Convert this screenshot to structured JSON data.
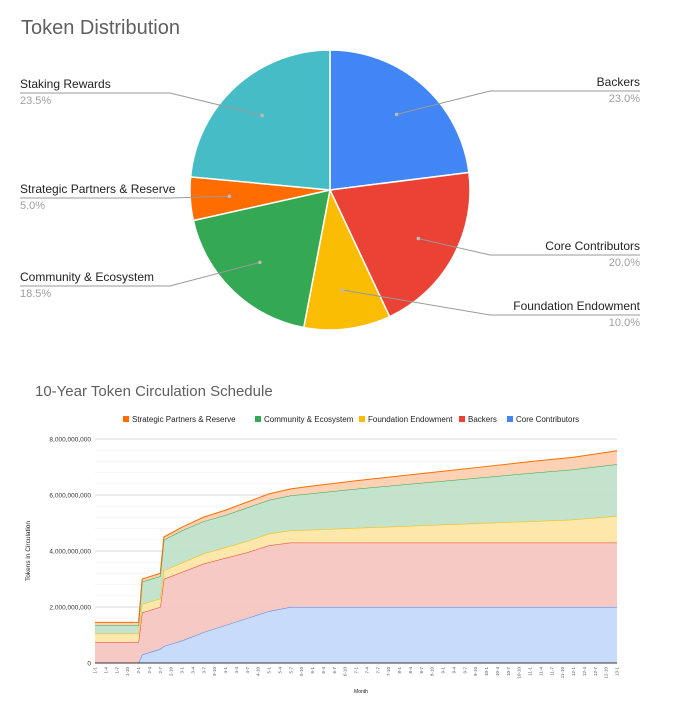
{
  "pie": {
    "title": "Token Distribution",
    "chart_data": {
      "type": "pie",
      "title": "Token Distribution",
      "slices": [
        {
          "label": "Backers",
          "value": 23.0,
          "pct": "23.0%",
          "color": "#4285f4"
        },
        {
          "label": "Core Contributors",
          "value": 20.0,
          "pct": "20.0%",
          "color": "#ea4335"
        },
        {
          "label": "Foundation Endowment",
          "value": 10.0,
          "pct": "10.0%",
          "color": "#fbbc04"
        },
        {
          "label": "Community & Ecosystem",
          "value": 18.5,
          "pct": "18.5%",
          "color": "#34a853"
        },
        {
          "label": "Strategic Partners & Reserve",
          "value": 5.0,
          "pct": "5.0%",
          "color": "#ff6d01"
        },
        {
          "label": "Staking Rewards",
          "value": 23.5,
          "pct": "23.5%",
          "color": "#46bdc6"
        }
      ]
    }
  },
  "area": {
    "title": "10-Year Token Circulation Schedule",
    "ylabel": "Tokens in Circulation",
    "xlabel": "Month",
    "chart_data": {
      "type": "area",
      "stacked": true,
      "title": "10-Year Token Circulation Schedule",
      "xlabel": "Month",
      "ylabel": "Tokens in Circulation",
      "ylim": [
        0,
        8000000000
      ],
      "yticks": [
        0,
        2000000000,
        4000000000,
        6000000000,
        8000000000
      ],
      "ytick_labels": [
        "0",
        "2,000,000,000",
        "4,000,000,000",
        "6,000,000,000",
        "8,000,000,000"
      ],
      "legend_position": "top",
      "x_months": [
        0,
        6,
        7,
        12,
        13,
        18,
        19,
        24,
        30,
        36,
        42,
        48,
        54,
        60,
        72,
        84,
        96,
        108,
        120,
        132,
        144
      ],
      "series": [
        {
          "name": "Core Contributors",
          "color": "#4285f4",
          "fill": "#c6d9fb",
          "values": [
            0,
            0,
            0,
            0,
            300000000,
            500000000,
            600000000,
            800000000,
            1100000000,
            1350000000,
            1600000000,
            1850000000,
            2000000000,
            2000000000,
            2000000000,
            2000000000,
            2000000000,
            2000000000,
            2000000000,
            2000000000,
            2000000000
          ]
        },
        {
          "name": "Backers",
          "color": "#ea4335",
          "fill": "#f6c6c2",
          "values": [
            750000000,
            750000000,
            750000000,
            750000000,
            1500000000,
            1500000000,
            2400000000,
            2450000000,
            2450000000,
            2400000000,
            2350000000,
            2350000000,
            2300000000,
            2300000000,
            2300000000,
            2300000000,
            2300000000,
            2300000000,
            2300000000,
            2300000000,
            2300000000
          ]
        },
        {
          "name": "Foundation Endowment",
          "color": "#fbbc04",
          "fill": "#fde6a6",
          "values": [
            300000000,
            300000000,
            300000000,
            300000000,
            300000000,
            300000000,
            300000000,
            330000000,
            360000000,
            380000000,
            400000000,
            420000000,
            430000000,
            460000000,
            520000000,
            580000000,
            640000000,
            700000000,
            760000000,
            820000000,
            950000000
          ]
        },
        {
          "name": "Community & Ecosystem",
          "color": "#34a853",
          "fill": "#c1e2c9",
          "values": [
            300000000,
            300000000,
            300000000,
            300000000,
            800000000,
            800000000,
            1100000000,
            1150000000,
            1150000000,
            1150000000,
            1200000000,
            1200000000,
            1250000000,
            1300000000,
            1400000000,
            1480000000,
            1560000000,
            1640000000,
            1720000000,
            1790000000,
            1850000000
          ]
        },
        {
          "name": "Strategic Partners & Reserve",
          "color": "#ff6d01",
          "fill": "#fdd0b0",
          "values": [
            100000000,
            100000000,
            100000000,
            100000000,
            100000000,
            100000000,
            100000000,
            120000000,
            150000000,
            180000000,
            200000000,
            220000000,
            240000000,
            260000000,
            290000000,
            320000000,
            350000000,
            380000000,
            410000000,
            440000000,
            480000000
          ]
        }
      ],
      "legend_order": [
        "Strategic Partners & Reserve",
        "Community & Ecosystem",
        "Foundation Endowment",
        "Backers",
        "Core Contributors"
      ]
    }
  }
}
